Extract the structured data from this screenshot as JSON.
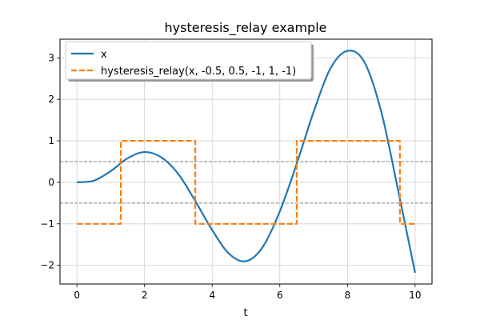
{
  "chart_data": {
    "type": "line",
    "title": "hysteresis_relay example",
    "xlabel": "t",
    "ylabel": "",
    "xlim": [
      -0.5,
      10.5
    ],
    "ylim": [
      -2.45,
      3.45
    ],
    "xticks": [
      0,
      2,
      4,
      6,
      8,
      10
    ],
    "xtick_labels": [
      "0",
      "2",
      "4",
      "6",
      "8",
      "10"
    ],
    "yticks": [
      -2,
      -1,
      0,
      1,
      2,
      3
    ],
    "ytick_labels": [
      "−2",
      "−1",
      "0",
      "1",
      "2",
      "3"
    ],
    "grid": true,
    "legend": {
      "placement": "upper left",
      "shadow": true
    },
    "threshold_lines": [
      0.5,
      -0.5
    ],
    "series": [
      {
        "name": "x",
        "color": "#1f77b4",
        "style": "solid",
        "x": [
          0,
          0.5,
          1,
          1.5,
          2,
          2.5,
          3,
          3.5,
          4,
          4.5,
          5,
          5.5,
          6,
          6.5,
          7,
          7.5,
          8,
          8.5,
          9,
          9.5,
          10
        ],
        "y": [
          0,
          0.04,
          0.27,
          0.58,
          0.73,
          0.6,
          0.2,
          -0.45,
          -1.15,
          -1.72,
          -1.9,
          -1.55,
          -0.7,
          0.45,
          1.7,
          2.75,
          3.17,
          2.9,
          1.7,
          -0.2,
          -2.18
        ]
      },
      {
        "name": "hysteresis_relay(x, -0.5, 0.5, -1, 1, -1)",
        "color": "#ff7f0e",
        "style": "dashed",
        "x": [
          0,
          1.3,
          1.3,
          3.5,
          3.5,
          6.5,
          6.5,
          9.55,
          9.55,
          10
        ],
        "y": [
          -1,
          -1,
          1,
          1,
          -1,
          -1,
          1,
          1,
          -1,
          -1
        ]
      }
    ]
  }
}
